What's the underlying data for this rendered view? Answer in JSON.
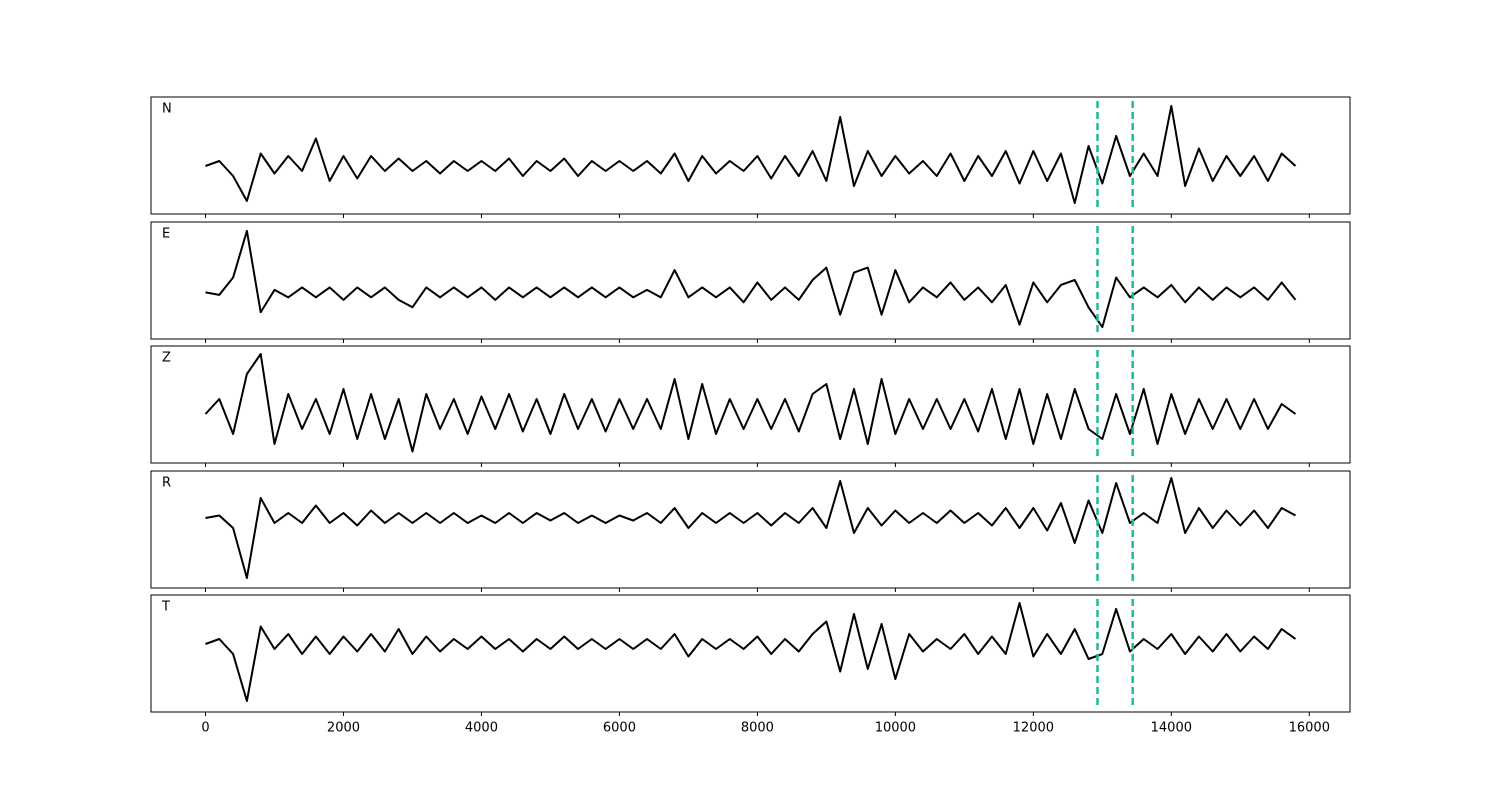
{
  "chart_data": [
    {
      "type": "line",
      "title": "N",
      "color": "#000000",
      "x": [
        0,
        200,
        400,
        600,
        800,
        1000,
        1200,
        1400,
        1600,
        1800,
        2000,
        2200,
        2400,
        2600,
        2800,
        3000,
        3200,
        3400,
        3600,
        3800,
        4000,
        4200,
        4400,
        4600,
        4800,
        5000,
        5200,
        5400,
        5600,
        5800,
        6000,
        6200,
        6400,
        6600,
        6800,
        7000,
        7200,
        7400,
        7600,
        7800,
        8000,
        8200,
        8400,
        8600,
        8800,
        9000,
        9200,
        9400,
        9600,
        9800,
        10000,
        10200,
        10400,
        10600,
        10800,
        11000,
        11200,
        11400,
        11600,
        11800,
        12000,
        12200,
        12400,
        12600,
        12800,
        13000,
        13200,
        13400,
        13600,
        13800,
        14000,
        14200,
        14400,
        14600,
        14800,
        15000,
        15200,
        15400,
        15600,
        15800
      ],
      "values": [
        0,
        0.1,
        -0.2,
        -0.7,
        0.25,
        -0.15,
        0.2,
        -0.1,
        0.55,
        -0.3,
        0.2,
        -0.25,
        0.2,
        -0.1,
        0.15,
        -0.1,
        0.1,
        -0.15,
        0.1,
        -0.1,
        0.1,
        -0.1,
        0.15,
        -0.2,
        0.1,
        -0.1,
        0.15,
        -0.2,
        0.1,
        -0.1,
        0.1,
        -0.1,
        0.1,
        -0.15,
        0.25,
        -0.3,
        0.2,
        -0.15,
        0.1,
        -0.1,
        0.2,
        -0.25,
        0.2,
        -0.2,
        0.3,
        -0.3,
        0.98,
        -0.4,
        0.3,
        -0.2,
        0.2,
        -0.15,
        0.1,
        -0.2,
        0.25,
        -0.3,
        0.2,
        -0.2,
        0.3,
        -0.35,
        0.3,
        -0.3,
        0.25,
        -0.74,
        0.4,
        -0.35,
        0.6,
        -0.2,
        0.25,
        -0.2,
        1.2,
        -0.4,
        0.35,
        -0.3,
        0.2,
        -0.2,
        0.2,
        -0.3,
        0.25,
        0
      ],
      "xlim": [
        -790,
        16590
      ],
      "ylim": [
        -0.96,
        1.38
      ],
      "xticks": [
        0,
        2000,
        4000,
        6000,
        8000,
        10000,
        12000,
        14000,
        16000
      ],
      "vlines": [
        12930,
        13440
      ],
      "vline_color": "#1abc9c"
    },
    {
      "type": "line",
      "title": "E",
      "color": "#000000",
      "x": [
        0,
        200,
        400,
        600,
        800,
        1000,
        1200,
        1400,
        1600,
        1800,
        2000,
        2200,
        2400,
        2600,
        2800,
        3000,
        3200,
        3400,
        3600,
        3800,
        4000,
        4200,
        4400,
        4600,
        4800,
        5000,
        5200,
        5400,
        5600,
        5800,
        6000,
        6200,
        6400,
        6600,
        6800,
        7000,
        7200,
        7400,
        7600,
        7800,
        8000,
        8200,
        8400,
        8600,
        8800,
        9000,
        9200,
        9400,
        9600,
        9800,
        10000,
        10200,
        10400,
        10600,
        10800,
        11000,
        11200,
        11400,
        11600,
        11800,
        12000,
        12200,
        12400,
        12600,
        12800,
        13000,
        13200,
        13400,
        13600,
        13800,
        14000,
        14200,
        14400,
        14600,
        14800,
        15000,
        15200,
        15400,
        15600,
        15800
      ],
      "values": [
        0,
        -0.05,
        0.3,
        1.24,
        -0.4,
        0.05,
        -0.1,
        0.1,
        -0.1,
        0.1,
        -0.15,
        0.1,
        -0.1,
        0.1,
        -0.15,
        -0.3,
        0.1,
        -0.1,
        0.1,
        -0.1,
        0.1,
        -0.15,
        0.1,
        -0.1,
        0.1,
        -0.1,
        0.1,
        -0.1,
        0.1,
        -0.1,
        0.1,
        -0.1,
        0.05,
        -0.1,
        0.45,
        -0.1,
        0.1,
        -0.1,
        0.1,
        -0.2,
        0.2,
        -0.15,
        0.1,
        -0.15,
        0.25,
        0.5,
        -0.45,
        0.4,
        0.5,
        -0.45,
        0.45,
        -0.2,
        0.1,
        -0.1,
        0.2,
        -0.15,
        0.1,
        -0.2,
        0.15,
        -0.65,
        0.2,
        -0.2,
        0.15,
        0.25,
        -0.3,
        -0.7,
        0.3,
        -0.1,
        0.1,
        -0.1,
        0.15,
        -0.2,
        0.1,
        -0.15,
        0.1,
        -0.1,
        0.1,
        -0.15,
        0.2,
        -0.15
      ],
      "xlim": [
        -790,
        16590
      ],
      "ylim": [
        -0.94,
        1.42
      ],
      "xticks": [
        0,
        2000,
        4000,
        6000,
        8000,
        10000,
        12000,
        14000,
        16000
      ],
      "vlines": [
        12930,
        13440
      ],
      "vline_color": "#1abc9c"
    },
    {
      "type": "line",
      "title": "Z",
      "color": "#000000",
      "x": [
        0,
        200,
        400,
        600,
        800,
        1000,
        1200,
        1400,
        1600,
        1800,
        2000,
        2200,
        2400,
        2600,
        2800,
        3000,
        3200,
        3400,
        3600,
        3800,
        4000,
        4200,
        4400,
        4600,
        4800,
        5000,
        5200,
        5400,
        5600,
        5800,
        6000,
        6200,
        6400,
        6600,
        6800,
        7000,
        7200,
        7400,
        7600,
        7800,
        8000,
        8200,
        8400,
        8600,
        8800,
        9000,
        9200,
        9400,
        9600,
        9800,
        10000,
        10200,
        10400,
        10600,
        10800,
        11000,
        11200,
        11400,
        11600,
        11800,
        12000,
        12200,
        12400,
        12600,
        12800,
        13000,
        13200,
        13400,
        13600,
        13800,
        14000,
        14200,
        14400,
        14600,
        14800,
        15000,
        15200,
        15400,
        15600,
        15800
      ],
      "values": [
        0,
        0.3,
        -0.4,
        0.8,
        1.2,
        -0.6,
        0.4,
        -0.3,
        0.3,
        -0.4,
        0.5,
        -0.5,
        0.4,
        -0.5,
        0.3,
        -0.75,
        0.4,
        -0.3,
        0.3,
        -0.4,
        0.35,
        -0.3,
        0.4,
        -0.35,
        0.3,
        -0.4,
        0.4,
        -0.3,
        0.3,
        -0.35,
        0.3,
        -0.3,
        0.3,
        -0.3,
        0.7,
        -0.5,
        0.6,
        -0.4,
        0.3,
        -0.3,
        0.3,
        -0.3,
        0.3,
        -0.35,
        0.4,
        0.6,
        -0.5,
        0.5,
        -0.6,
        0.7,
        -0.4,
        0.3,
        -0.3,
        0.3,
        -0.3,
        0.3,
        -0.35,
        0.5,
        -0.5,
        0.5,
        -0.6,
        0.4,
        -0.5,
        0.5,
        -0.3,
        -0.5,
        0.4,
        -0.4,
        0.5,
        -0.6,
        0.4,
        -0.4,
        0.3,
        -0.3,
        0.3,
        -0.3,
        0.3,
        -0.3,
        0.2,
        0
      ],
      "xlim": [
        -790,
        16590
      ],
      "ylim": [
        -0.98,
        1.36
      ],
      "xticks": [
        0,
        2000,
        4000,
        6000,
        8000,
        10000,
        12000,
        14000,
        16000
      ],
      "vlines": [
        12930,
        13440
      ],
      "vline_color": "#1abc9c"
    },
    {
      "type": "line",
      "title": "R",
      "color": "#000000",
      "x": [
        0,
        200,
        400,
        600,
        800,
        1000,
        1200,
        1400,
        1600,
        1800,
        2000,
        2200,
        2400,
        2600,
        2800,
        3000,
        3200,
        3400,
        3600,
        3800,
        4000,
        4200,
        4400,
        4600,
        4800,
        5000,
        5200,
        5400,
        5600,
        5800,
        6000,
        6200,
        6400,
        6600,
        6800,
        7000,
        7200,
        7400,
        7600,
        7800,
        8000,
        8200,
        8400,
        8600,
        8800,
        9000,
        9200,
        9400,
        9600,
        9800,
        10000,
        10200,
        10400,
        10600,
        10800,
        11000,
        11200,
        11400,
        11600,
        11800,
        12000,
        12200,
        12400,
        12600,
        12800,
        13000,
        13200,
        13400,
        13600,
        13800,
        14000,
        14200,
        14400,
        14600,
        14800,
        15000,
        15200,
        15400,
        15600,
        15800
      ],
      "values": [
        0,
        0.05,
        -0.2,
        -1.2,
        0.4,
        -0.1,
        0.1,
        -0.1,
        0.25,
        -0.1,
        0.1,
        -0.15,
        0.15,
        -0.1,
        0.1,
        -0.1,
        0.1,
        -0.1,
        0.1,
        -0.1,
        0.05,
        -0.1,
        0.1,
        -0.1,
        0.1,
        -0.05,
        0.1,
        -0.1,
        0.05,
        -0.1,
        0.05,
        -0.05,
        0.1,
        -0.1,
        0.2,
        -0.2,
        0.1,
        -0.1,
        0.1,
        -0.1,
        0.1,
        -0.15,
        0.1,
        -0.1,
        0.2,
        -0.2,
        0.74,
        -0.3,
        0.2,
        -0.15,
        0.15,
        -0.1,
        0.1,
        -0.1,
        0.15,
        -0.1,
        0.1,
        -0.15,
        0.2,
        -0.2,
        0.2,
        -0.25,
        0.3,
        -0.5,
        0.35,
        -0.3,
        0.7,
        -0.1,
        0.1,
        -0.1,
        0.8,
        -0.3,
        0.2,
        -0.2,
        0.15,
        -0.15,
        0.15,
        -0.2,
        0.2,
        0.05
      ],
      "xlim": [
        -790,
        16590
      ],
      "ylim": [
        -1.4,
        0.94
      ],
      "xticks": [
        0,
        2000,
        4000,
        6000,
        8000,
        10000,
        12000,
        14000,
        16000
      ],
      "vlines": [
        12930,
        13440
      ],
      "vline_color": "#1abc9c"
    },
    {
      "type": "line",
      "title": "T",
      "color": "#000000",
      "x": [
        0,
        200,
        400,
        600,
        800,
        1000,
        1200,
        1400,
        1600,
        1800,
        2000,
        2200,
        2400,
        2600,
        2800,
        3000,
        3200,
        3400,
        3600,
        3800,
        4000,
        4200,
        4400,
        4600,
        4800,
        5000,
        5200,
        5400,
        5600,
        5800,
        6000,
        6200,
        6400,
        6600,
        6800,
        7000,
        7200,
        7400,
        7600,
        7800,
        8000,
        8200,
        8400,
        8600,
        8800,
        9000,
        9200,
        9400,
        9600,
        9800,
        10000,
        10200,
        10400,
        10600,
        10800,
        11000,
        11200,
        11400,
        11600,
        11800,
        12000,
        12200,
        12400,
        12600,
        12800,
        13000,
        13200,
        13400,
        13600,
        13800,
        14000,
        14200,
        14400,
        14600,
        14800,
        15000,
        15200,
        15400,
        15600,
        15800
      ],
      "values": [
        0,
        0.1,
        -0.2,
        -1.14,
        0.35,
        -0.1,
        0.2,
        -0.2,
        0.15,
        -0.2,
        0.15,
        -0.15,
        0.2,
        -0.15,
        0.3,
        -0.2,
        0.15,
        -0.15,
        0.1,
        -0.1,
        0.15,
        -0.1,
        0.1,
        -0.15,
        0.1,
        -0.1,
        0.15,
        -0.1,
        0.1,
        -0.1,
        0.1,
        -0.1,
        0.1,
        -0.1,
        0.2,
        -0.25,
        0.1,
        -0.1,
        0.1,
        -0.1,
        0.15,
        -0.2,
        0.1,
        -0.15,
        0.2,
        0.45,
        -0.55,
        0.6,
        -0.5,
        0.4,
        -0.7,
        0.2,
        -0.15,
        0.1,
        -0.1,
        0.2,
        -0.2,
        0.15,
        -0.2,
        0.82,
        -0.25,
        0.2,
        -0.2,
        0.3,
        -0.3,
        -0.2,
        0.7,
        -0.15,
        0.1,
        -0.1,
        0.2,
        -0.2,
        0.15,
        -0.15,
        0.2,
        -0.15,
        0.15,
        -0.1,
        0.3,
        0.1
      ],
      "xlim": [
        -790,
        16590
      ],
      "ylim": [
        -1.36,
        0.98
      ],
      "xticks": [
        0,
        2000,
        4000,
        6000,
        8000,
        10000,
        12000,
        14000,
        16000
      ],
      "vlines": [
        12930,
        13440
      ],
      "vline_color": "#1abc9c"
    }
  ]
}
